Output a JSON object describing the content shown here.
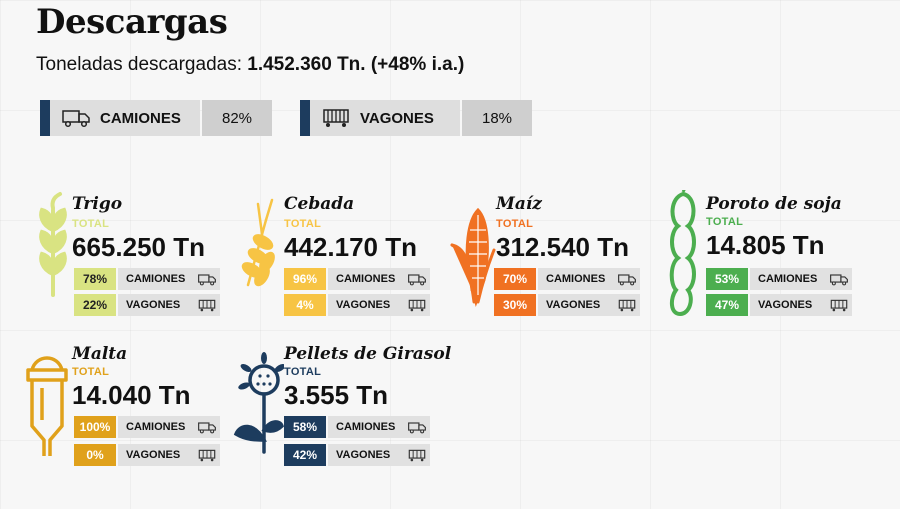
{
  "header": {
    "title": "Descargas",
    "subtitle_prefix": "Toneladas descargadas: ",
    "subtitle_value": "1.452.360 Tn. (+48% i.a.)"
  },
  "modes": [
    {
      "label": "CAMIONES",
      "pct": "82%",
      "icon": "truck-icon"
    },
    {
      "label": "VAGONES",
      "pct": "18%",
      "icon": "railcar-icon"
    }
  ],
  "total_label": "TOTAL",
  "row_labels": {
    "camiones": "CAMIONES",
    "vagones": "VAGONES"
  },
  "products": [
    {
      "name": "Trigo",
      "value": "665.250 Tn",
      "camiones": "78%",
      "vagones": "22%",
      "color": "#d9e382",
      "text_color": "#222222",
      "icon": "wheat-icon"
    },
    {
      "name": "Cebada",
      "value": "442.170 Tn",
      "camiones": "96%",
      "vagones": "4%",
      "color": "#f7c444",
      "text_color": "#ffffff",
      "icon": "barley-icon"
    },
    {
      "name": "Maíz",
      "value": "312.540 Tn",
      "camiones": "70%",
      "vagones": "30%",
      "color": "#f07122",
      "text_color": "#ffffff",
      "icon": "corn-icon"
    },
    {
      "name": "Poroto de soja",
      "value": "14.805 Tn",
      "camiones": "53%",
      "vagones": "47%",
      "color": "#4cae4f",
      "text_color": "#ffffff",
      "icon": "soy-pod-icon"
    },
    {
      "name": "Malta",
      "value": "14.040 Tn",
      "camiones": "100%",
      "vagones": "0%",
      "color": "#e0a11b",
      "text_color": "#ffffff",
      "icon": "silo-icon"
    },
    {
      "name": "Pellets de Girasol",
      "value": "3.555 Tn",
      "camiones": "58%",
      "vagones": "42%",
      "color": "#1d3c5e",
      "text_color": "#ffffff",
      "icon": "sunflower-icon"
    }
  ]
}
